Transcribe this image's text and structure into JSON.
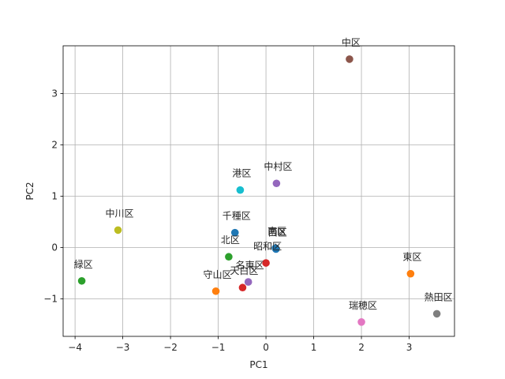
{
  "chart_data": {
    "type": "scatter",
    "title": "",
    "xlabel": "PC1",
    "ylabel": "PC2",
    "xlim": [
      -4.25,
      3.95
    ],
    "ylim": [
      -1.73,
      3.93
    ],
    "xticks": [
      -4,
      -3,
      -2,
      -1,
      0,
      1,
      2,
      3
    ],
    "yticks": [
      -1,
      0,
      1,
      2,
      3
    ],
    "grid": true,
    "points": [
      {
        "label": "千種区",
        "x": -0.65,
        "y": 0.29,
        "color": "#1f77b4"
      },
      {
        "label": "東区",
        "x": 3.03,
        "y": -0.51,
        "color": "#ff7f0e"
      },
      {
        "label": "北区",
        "x": -0.78,
        "y": -0.18,
        "color": "#2ca02c"
      },
      {
        "label": "西区",
        "x": 0.21,
        "y": -0.03,
        "color": "#1f77b4"
      },
      {
        "label": "中村区",
        "x": 0.22,
        "y": 1.25,
        "color": "#9467bd"
      },
      {
        "label": "中区",
        "x": 1.75,
        "y": 3.67,
        "color": "#8c564b"
      },
      {
        "label": "昭和区",
        "x": 0.0,
        "y": -0.3,
        "color": "#d62728"
      },
      {
        "label": "瑞穂区",
        "x": 2.0,
        "y": -1.45,
        "color": "#e377c2"
      },
      {
        "label": "熱田区",
        "x": 3.58,
        "y": -1.29,
        "color": "#7f7f7f"
      },
      {
        "label": "中川区",
        "x": -3.1,
        "y": 0.34,
        "color": "#bcbd22"
      },
      {
        "label": "港区",
        "x": -0.54,
        "y": 1.12,
        "color": "#17becf"
      },
      {
        "label": "南区",
        "x": 0.2,
        "y": -0.01,
        "color": "#1f77b4"
      },
      {
        "label": "守山区",
        "x": -1.05,
        "y": -0.85,
        "color": "#ff7f0e"
      },
      {
        "label": "緑区",
        "x": -3.86,
        "y": -0.65,
        "color": "#2ca02c"
      },
      {
        "label": "名東区",
        "x": -0.37,
        "y": -0.67,
        "color": "#9467bd"
      },
      {
        "label": "天白区",
        "x": -0.49,
        "y": -0.78,
        "color": "#d62728"
      }
    ]
  }
}
